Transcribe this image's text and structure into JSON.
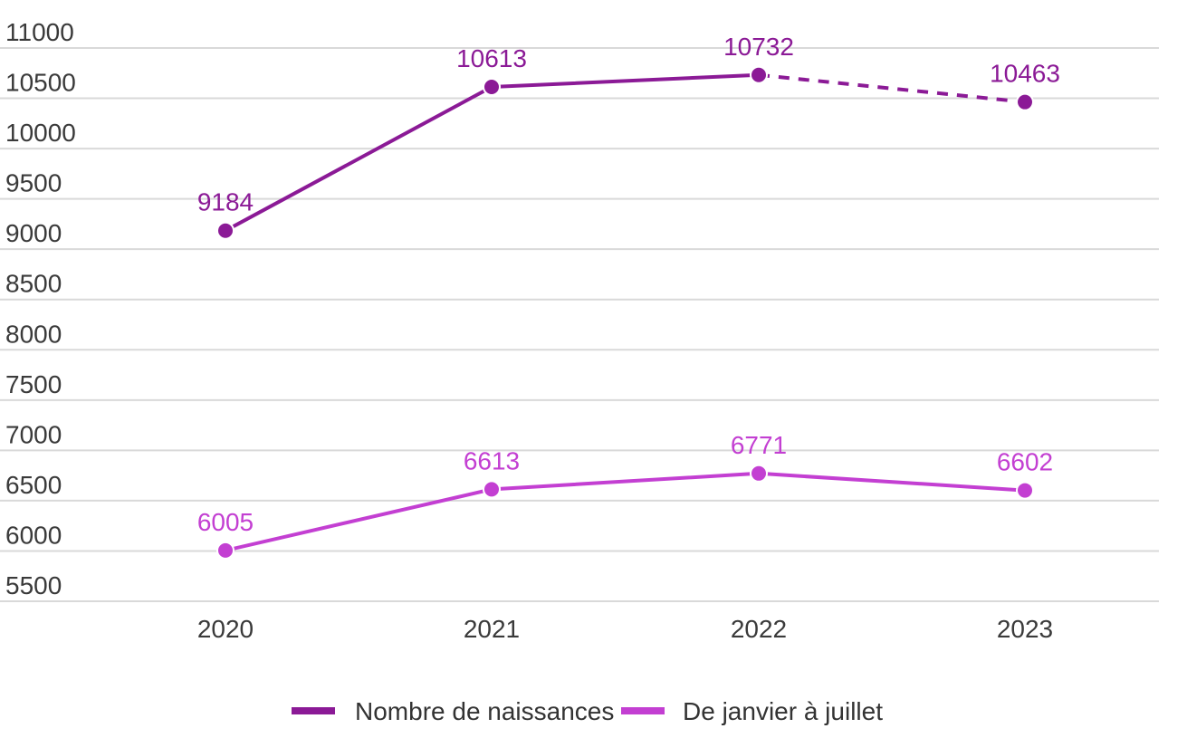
{
  "chart_data": {
    "type": "line",
    "title": "",
    "xlabel": "",
    "ylabel": "",
    "x": [
      "2020",
      "2021",
      "2022",
      "2023"
    ],
    "ylim": [
      5500,
      11000
    ],
    "yticks": [
      11000,
      10500,
      10000,
      9500,
      9000,
      8500,
      8000,
      7500,
      7000,
      6500,
      6000,
      5500
    ],
    "grid": true,
    "legend_position": "bottom-center",
    "series": [
      {
        "name": "Nombre de naissances",
        "values": [
          9184,
          10613,
          10732,
          10463
        ],
        "labels": [
          "9184",
          "10613",
          "10732",
          "10463"
        ],
        "color": "#8b1a96",
        "last_segment_dashed": true
      },
      {
        "name": "De janvier à juillet",
        "values": [
          6005,
          6613,
          6771,
          6602
        ],
        "labels": [
          "6005",
          "6613",
          "6771",
          "6602"
        ],
        "color": "#c33fd2",
        "last_segment_dashed": false
      }
    ]
  }
}
